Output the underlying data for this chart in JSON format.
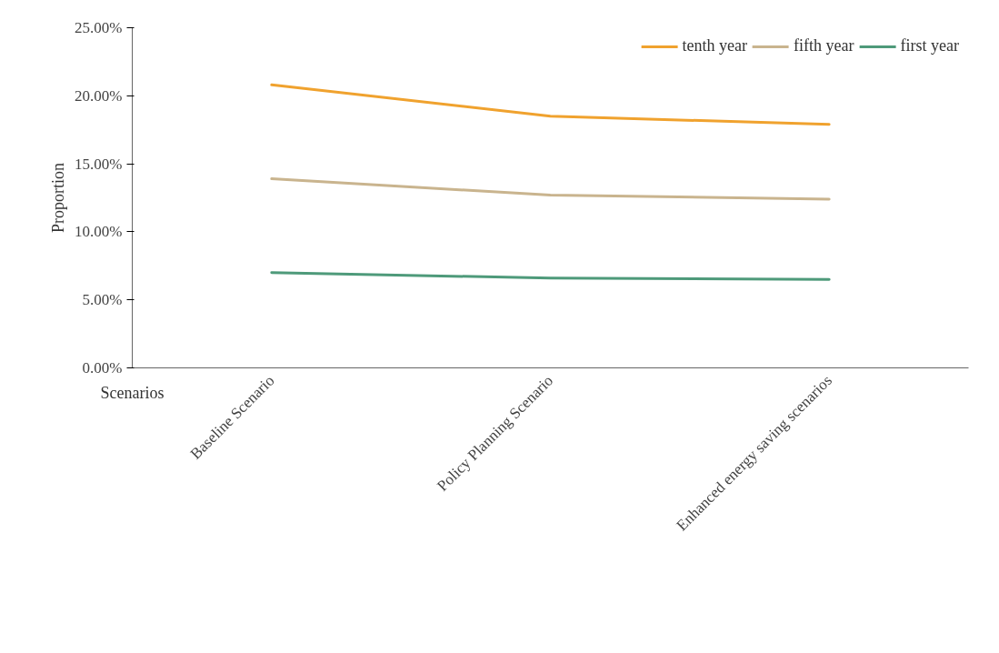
{
  "chart_data": {
    "type": "line",
    "xlabel": "Scenarios",
    "ylabel": "Proportion",
    "categories": [
      "Baseline Scenario",
      "Policy Planning Scenario",
      "Enhanced energy saving scenarios"
    ],
    "series": [
      {
        "name": "tenth year",
        "color": "#f0a22e",
        "values": [
          20.8,
          18.5,
          17.9
        ]
      },
      {
        "name": "fifth year",
        "color": "#c9b48e",
        "values": [
          13.9,
          12.7,
          12.4
        ]
      },
      {
        "name": "first year",
        "color": "#4e9a7a",
        "values": [
          7.0,
          6.6,
          6.5
        ]
      }
    ],
    "ylim": [
      0,
      25
    ],
    "yticks": [
      {
        "value": 0,
        "label": "0.00%"
      },
      {
        "value": 5,
        "label": "5.00%"
      },
      {
        "value": 10,
        "label": "10.00%"
      },
      {
        "value": 15,
        "label": "15.00%"
      },
      {
        "value": 20,
        "label": "20.00%"
      },
      {
        "value": 25,
        "label": "25.00%"
      }
    ],
    "legend": "top right",
    "grid": false,
    "marker": "none",
    "line_style": "solid"
  }
}
